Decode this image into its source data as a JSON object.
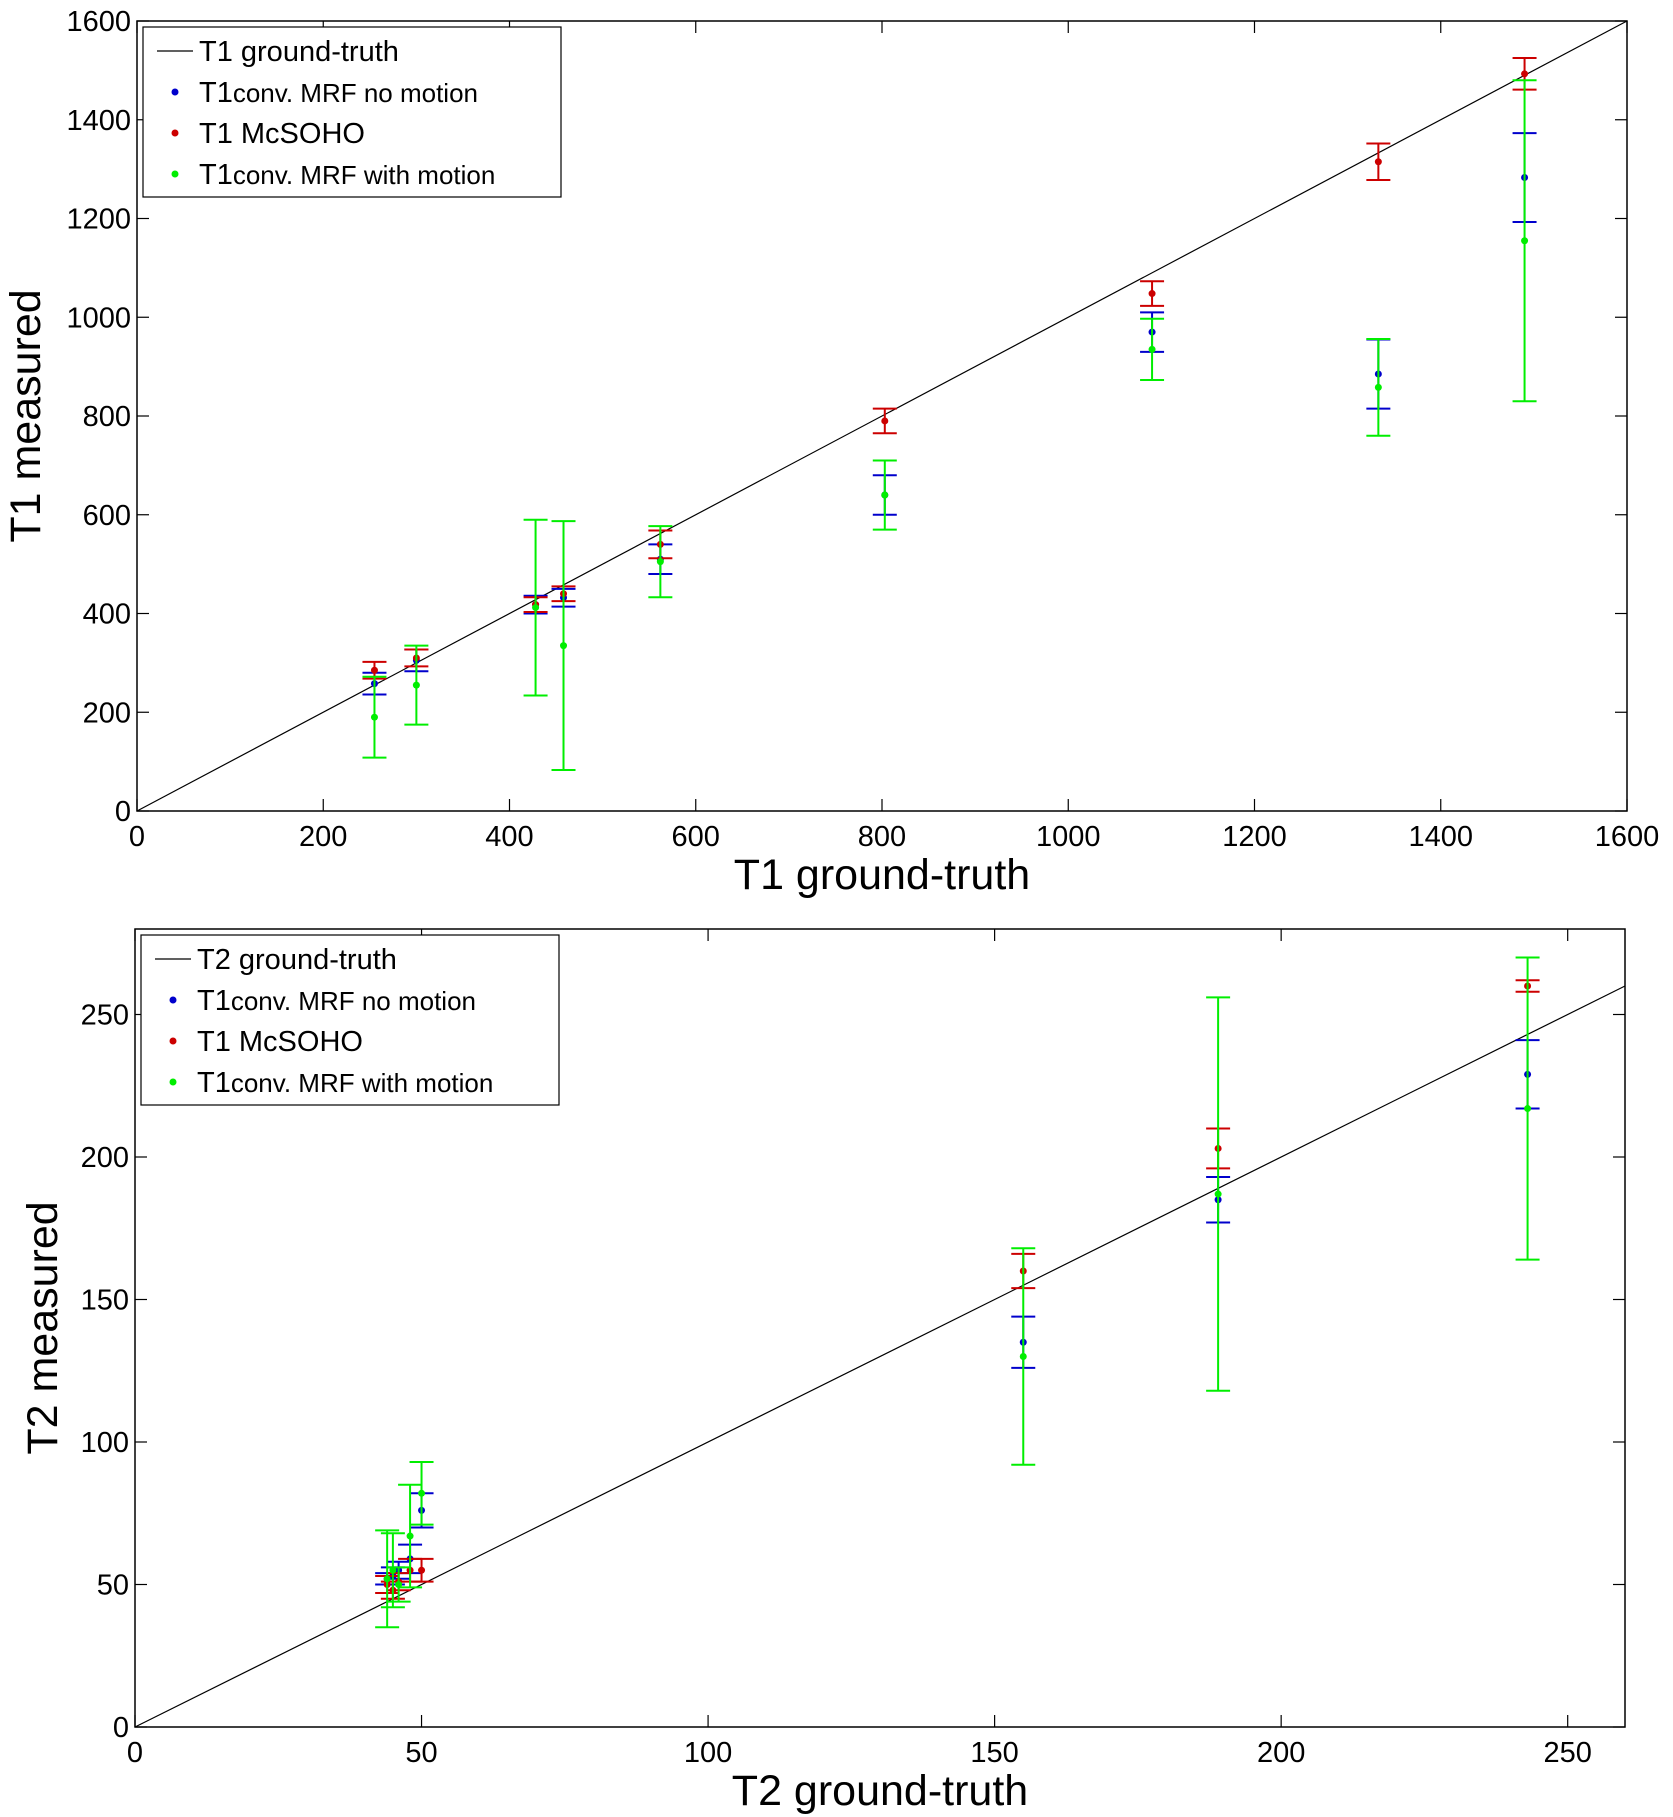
{
  "colors": {
    "ground_truth": "#000000",
    "no_motion": "#0000cc",
    "mcsoho": "#cc0000",
    "with_motion": "#00ee00"
  },
  "chart_data": [
    {
      "type": "scatter",
      "xlabel": "T1 ground-truth",
      "ylabel": "T1 measured",
      "xlim": [
        0,
        1600
      ],
      "ylim": [
        0,
        1600
      ],
      "xticks": [
        "0",
        "200",
        "400",
        "600",
        "800",
        "1000",
        "1200",
        "1400",
        "1600"
      ],
      "yticks": [
        "0",
        "200",
        "400",
        "600",
        "800",
        "1000",
        "1200",
        "1400",
        "1600"
      ],
      "legend_position": "top-left",
      "legend": [
        {
          "prefix": "T1",
          "text": " ground-truth",
          "small": false
        },
        {
          "prefix": "T1",
          "text": "conv. MRF no motion",
          "small": true
        },
        {
          "prefix": "T1",
          "text": " McSOHO",
          "small": false
        },
        {
          "prefix": "T1",
          "text": "conv. MRF with motion",
          "small": true
        }
      ],
      "reference_line": {
        "x": [
          0,
          1600
        ],
        "y": [
          0,
          1600
        ]
      },
      "series": [
        {
          "key": "no_motion",
          "x": [
            255,
            300,
            428,
            458,
            562,
            803,
            1090,
            1333,
            1490
          ],
          "y": [
            258,
            305,
            418,
            432,
            510,
            640,
            970,
            885,
            1283
          ],
          "err": [
            22,
            22,
            18,
            18,
            30,
            40,
            40,
            70,
            90
          ]
        },
        {
          "key": "mcsoho",
          "x": [
            255,
            300,
            428,
            458,
            562,
            803,
            1090,
            1333,
            1490
          ],
          "y": [
            285,
            310,
            418,
            440,
            540,
            790,
            1048,
            1315,
            1493
          ],
          "err": [
            17,
            17,
            15,
            15,
            28,
            25,
            25,
            37,
            32
          ]
        },
        {
          "key": "with_motion",
          "x": [
            255,
            300,
            428,
            458,
            562,
            803,
            1090,
            1333,
            1490
          ],
          "y": [
            190,
            255,
            412,
            335,
            505,
            640,
            935,
            858,
            1155
          ],
          "err": [
            82,
            80,
            178,
            252,
            72,
            70,
            62,
            98,
            325
          ]
        }
      ]
    },
    {
      "type": "scatter",
      "xlabel": "T2 ground-truth",
      "ylabel": "T2 measured",
      "xlim": [
        0,
        260
      ],
      "ylim": [
        0,
        280
      ],
      "xticks": [
        "0",
        "50",
        "100",
        "150",
        "200",
        "250"
      ],
      "yticks": [
        "0",
        "50",
        "100",
        "150",
        "200",
        "250"
      ],
      "legend_position": "top-left",
      "legend": [
        {
          "prefix": "T2",
          "text": " ground-truth",
          "small": false
        },
        {
          "prefix": "T1",
          "text": "conv. MRF no motion",
          "small": true
        },
        {
          "prefix": "T1",
          "text": " McSOHO",
          "small": false
        },
        {
          "prefix": "T1",
          "text": "conv. MRF with motion",
          "small": true
        }
      ],
      "reference_line": {
        "x": [
          0,
          260
        ],
        "y": [
          0,
          260
        ]
      },
      "series": [
        {
          "key": "no_motion",
          "x": [
            44,
            45,
            46,
            48,
            50,
            155,
            189,
            243
          ],
          "y": [
            52,
            53,
            55,
            59,
            76,
            135,
            185,
            229
          ],
          "err": [
            2,
            3,
            3,
            5,
            6,
            9,
            8,
            12
          ]
        },
        {
          "key": "mcsoho",
          "x": [
            44,
            45,
            46,
            48,
            50,
            155,
            189,
            243
          ],
          "y": [
            50,
            48,
            51,
            55,
            55,
            160,
            203,
            260
          ],
          "err": [
            3,
            3,
            3,
            4,
            4,
            6,
            7,
            2
          ]
        },
        {
          "key": "with_motion",
          "x": [
            44,
            45,
            46,
            48,
            50,
            155,
            189,
            243
          ],
          "y": [
            52,
            55,
            50,
            67,
            82,
            130,
            187,
            217
          ],
          "err": [
            17,
            13,
            6,
            18,
            11,
            38,
            69,
            53
          ]
        }
      ]
    }
  ]
}
